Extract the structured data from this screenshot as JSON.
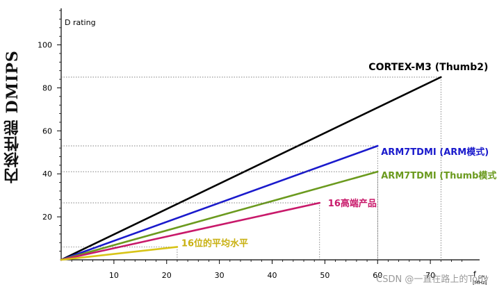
{
  "y_axis_title": "内核性能 DMIPS",
  "watermark": "CSDN @一直在路上的Tony",
  "chart_data": {
    "type": "line",
    "ylabel_inside": "D rating",
    "xlabel": "f",
    "xlabel_sub": "CPU",
    "xunit": "[MHz]",
    "xlim": [
      0,
      80
    ],
    "ylim": [
      0,
      117
    ],
    "xticks": [
      10,
      20,
      30,
      40,
      50,
      60,
      70
    ],
    "yticks": [
      20,
      40,
      60,
      80,
      100
    ],
    "grid": false,
    "series": [
      {
        "name": "CORTEX-M3 (Thumb2)",
        "color": "#000000",
        "x": [
          0,
          72
        ],
        "y": [
          0,
          85
        ],
        "label_color": "#000000"
      },
      {
        "name": "ARM7TDMI (ARM模式)",
        "color": "#1a1acc",
        "x": [
          0,
          60
        ],
        "y": [
          0,
          53
        ],
        "label_color": "#1a1acc"
      },
      {
        "name": "ARM7TDMI (Thumb模式)",
        "color": "#6b9a1e",
        "x": [
          0,
          60
        ],
        "y": [
          0,
          41
        ],
        "label_color": "#6b9a1e"
      },
      {
        "name": "16高端产品",
        "color": "#c8196a",
        "x": [
          0,
          49
        ],
        "y": [
          0,
          26.5
        ],
        "label_color": "#c8196a"
      },
      {
        "name": "16位的平均水平",
        "color": "#d8c418",
        "x": [
          0,
          22
        ],
        "y": [
          0,
          6
        ],
        "label_color": "#c8b010"
      }
    ]
  }
}
